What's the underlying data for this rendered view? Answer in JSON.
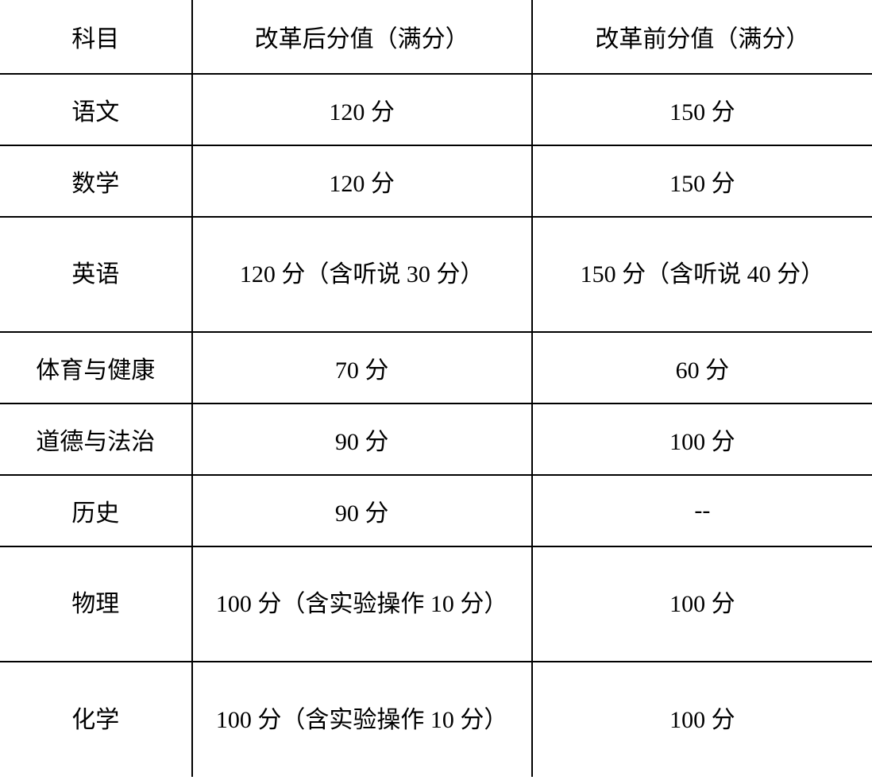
{
  "table": {
    "type": "table",
    "background_color": "#ffffff",
    "border_color": "#000000",
    "text_color": "#000000",
    "font_size": 30,
    "columns": [
      {
        "key": "subject",
        "label": "科目",
        "width": "22%",
        "align": "center"
      },
      {
        "key": "after",
        "label": "改革后分值（满分）",
        "width": "39%",
        "align": "center"
      },
      {
        "key": "before",
        "label": "改革前分值（满分）",
        "width": "39%",
        "align": "center"
      }
    ],
    "rows": [
      {
        "subject": "语文",
        "after": "120 分",
        "before": "150 分"
      },
      {
        "subject": "数学",
        "after": "120 分",
        "before": "150 分"
      },
      {
        "subject": "英语",
        "after": "120 分（含听说 30 分）",
        "before": "150 分（含听说 40 分）"
      },
      {
        "subject": "体育与健康",
        "after": "70 分",
        "before": "60 分"
      },
      {
        "subject": "道德与法治",
        "after": "90 分",
        "before": "100 分"
      },
      {
        "subject": "历史",
        "after": "90 分",
        "before": "--"
      },
      {
        "subject": "物理",
        "after": "100 分（含实验操作 10 分）",
        "before": "100 分"
      },
      {
        "subject": "化学",
        "after": "100 分（含实验操作 10 分）",
        "before": "100 分"
      }
    ]
  }
}
